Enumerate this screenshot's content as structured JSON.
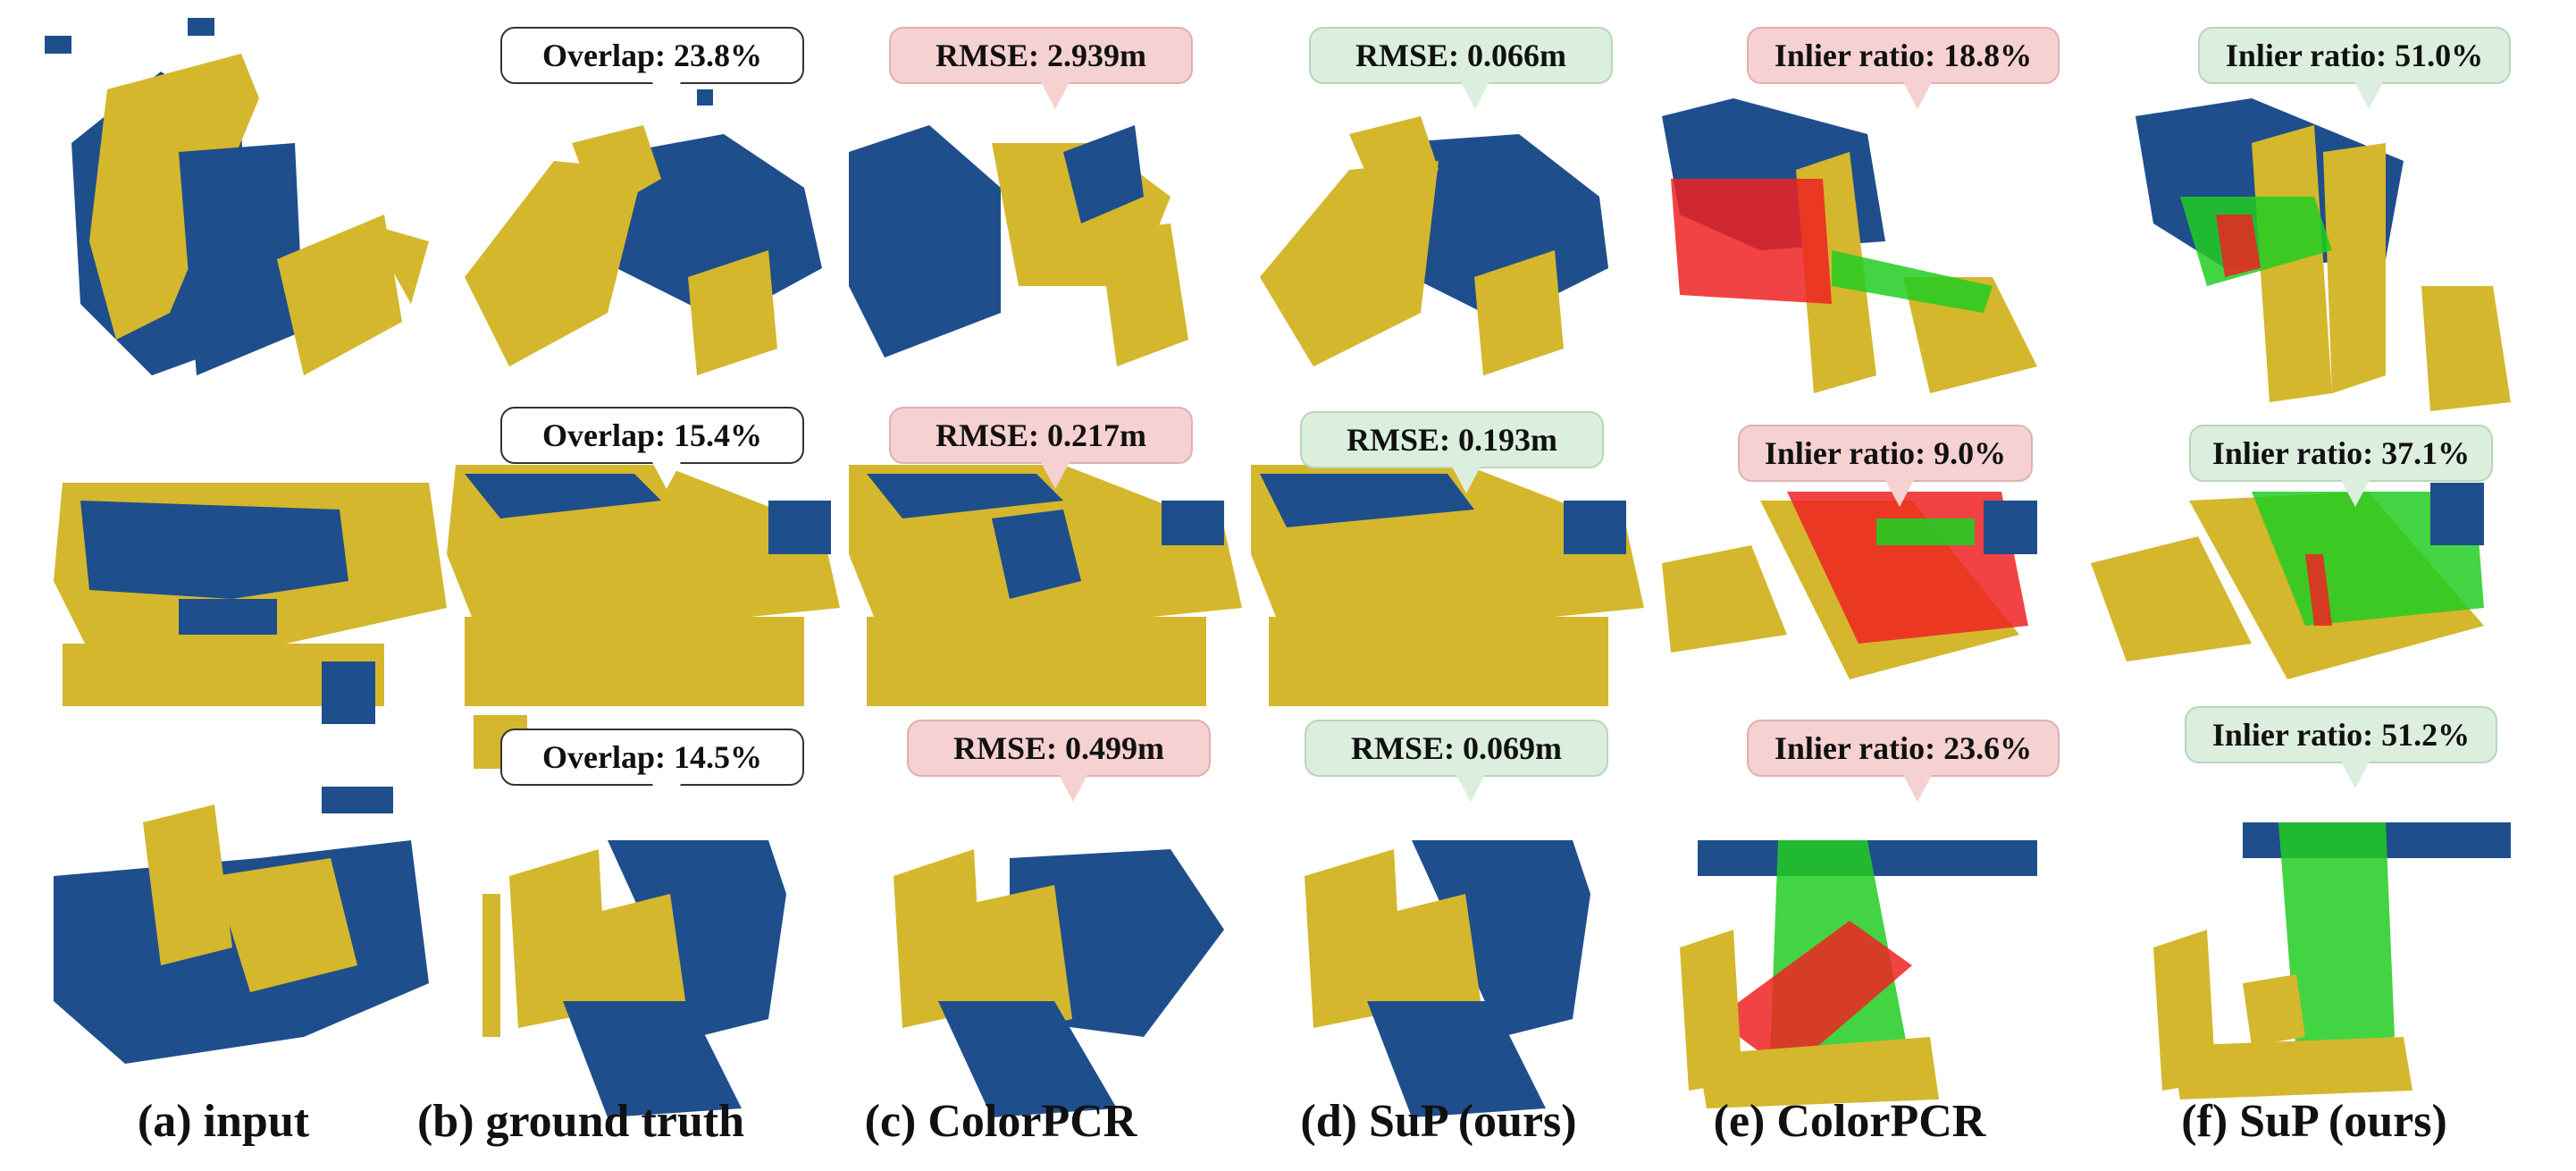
{
  "colors": {
    "source": "#d4b72c",
    "target": "#1f4e8c",
    "inlier": "#22cc22",
    "outlier": "#ee2222"
  },
  "captions": [
    "(a) input",
    "(b) ground truth",
    "(c) ColorPCR",
    "(d) SuP (ours)",
    "(e) ColorPCR",
    "(f) SuP (ours)"
  ],
  "rows": [
    {
      "overlap": "Overlap: 23.8%",
      "rmse_colorpcr": "RMSE: 2.939m",
      "rmse_sup": "RMSE: 0.066m",
      "inlier_colorpcr": "Inlier ratio: 18.8%",
      "inlier_sup": "Inlier ratio: 51.0%"
    },
    {
      "overlap": "Overlap: 15.4%",
      "rmse_colorpcr": "RMSE: 0.217m",
      "rmse_sup": "RMSE: 0.193m",
      "inlier_colorpcr": "Inlier ratio: 9.0%",
      "inlier_sup": "Inlier ratio: 37.1%"
    },
    {
      "overlap": "Overlap: 14.5%",
      "rmse_colorpcr": "RMSE: 0.499m",
      "rmse_sup": "RMSE: 0.069m",
      "inlier_colorpcr": "Inlier ratio: 23.6%",
      "inlier_sup": "Inlier ratio: 51.2%"
    }
  ]
}
